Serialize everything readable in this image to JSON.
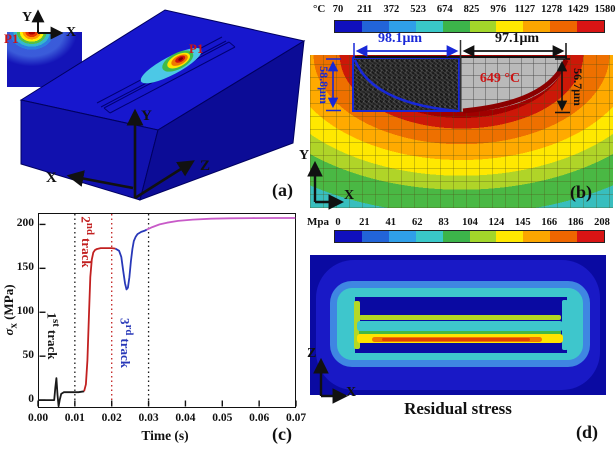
{
  "colors": {
    "colorbar": [
      "#1010be",
      "#2264d8",
      "#2f9fe8",
      "#39c8c8",
      "#3cb44a",
      "#a2d62a",
      "#ffe800",
      "#fba600",
      "#ee6600",
      "#d81414"
    ],
    "annotation_blue": "#1828d8",
    "annotation_red": "#cc1414",
    "block_blue": "#1414c0"
  },
  "panel_a": {
    "label": "(a)",
    "p1": "P1",
    "axis_x": "X",
    "axis_y": "Y",
    "axis_z": "Z",
    "inset": {
      "p1": "P1",
      "axis_x": "X",
      "axis_y": "Y"
    }
  },
  "panel_b": {
    "label": "(b)",
    "colorbar": {
      "unit": "°C",
      "ticks": [
        "70",
        "211",
        "372",
        "523",
        "674",
        "825",
        "976",
        "1127",
        "1278",
        "1429",
        "1580"
      ]
    },
    "width_left": "98.1μm",
    "width_right": "97.1μm",
    "depth_left": "58.8μm",
    "depth_right": "56.7μm",
    "peak_temp": "649 °C",
    "axis_x": "X",
    "axis_y": "Y"
  },
  "panel_c": {
    "label": "(c)",
    "xlabel": "Time (s)",
    "ylabel_sym": "σ",
    "ylabel_sub": "x",
    "ylabel_unit": "(MPa)",
    "x_ticks": [
      "0.00",
      "0.01",
      "0.02",
      "0.03",
      "0.04",
      "0.05",
      "0.06",
      "0.07"
    ],
    "y_ticks": [
      "0",
      "50",
      "100",
      "150",
      "200"
    ],
    "tracks": [
      {
        "num": "1",
        "sup": "st",
        "word": "track",
        "color": "#1a1a1a"
      },
      {
        "num": "2",
        "sup": "nd",
        "word": "track",
        "color": "#c22020"
      },
      {
        "num": "3",
        "sup": "rd",
        "word": "track",
        "color": "#2838b8"
      }
    ]
  },
  "panel_d": {
    "label": "(d)",
    "title": "Residual stress",
    "colorbar": {
      "unit": "Mpa",
      "ticks": [
        "0",
        "21",
        "41",
        "62",
        "83",
        "104",
        "124",
        "145",
        "166",
        "186",
        "208"
      ]
    },
    "axis_x": "X",
    "axis_z": "Z"
  },
  "chart_data": {
    "type": "line",
    "title": "",
    "xlabel": "Time (s)",
    "ylabel": "σx (MPa)",
    "xlim": [
      0,
      0.07
    ],
    "ylim": [
      -9,
      213
    ],
    "x_tick_values": [
      0,
      0.01,
      0.02,
      0.03,
      0.04,
      0.05,
      0.06,
      0.07
    ],
    "y_tick_values": [
      0,
      50,
      100,
      150,
      200
    ],
    "grid": false,
    "legend": false,
    "vlines": [
      {
        "x": 0.01,
        "color": "#1a1a1a"
      },
      {
        "x": 0.02,
        "color": "#c22020"
      },
      {
        "x": 0.03,
        "color": "#1a1a1a"
      }
    ],
    "series": [
      {
        "name": "stage-1",
        "color": "#1a1a1a",
        "points": [
          [
            0,
            0
          ],
          [
            0.0044,
            0
          ],
          [
            0.0047,
            14
          ],
          [
            0.005,
            25
          ],
          [
            0.0053,
            6
          ],
          [
            0.0056,
            -7
          ],
          [
            0.0059,
            0
          ],
          [
            0.0063,
            7
          ],
          [
            0.007,
            9
          ],
          [
            0.009,
            9
          ],
          [
            0.011,
            9
          ],
          [
            0.0125,
            10
          ]
        ]
      },
      {
        "name": "stage-2",
        "color": "#c22020",
        "points": [
          [
            0.0125,
            10
          ],
          [
            0.013,
            18
          ],
          [
            0.0134,
            45
          ],
          [
            0.0138,
            95
          ],
          [
            0.0142,
            140
          ],
          [
            0.0146,
            160
          ],
          [
            0.015,
            168
          ],
          [
            0.0155,
            171
          ],
          [
            0.016,
            172
          ],
          [
            0.017,
            173
          ],
          [
            0.0185,
            173
          ],
          [
            0.02,
            173
          ],
          [
            0.021,
            172.5
          ]
        ]
      },
      {
        "name": "stage-3",
        "color": "#2838b8",
        "points": [
          [
            0.021,
            172.5
          ],
          [
            0.022,
            170
          ],
          [
            0.0226,
            163
          ],
          [
            0.0231,
            148
          ],
          [
            0.0236,
            133
          ],
          [
            0.024,
            126
          ],
          [
            0.0244,
            128
          ],
          [
            0.0248,
            140
          ],
          [
            0.0252,
            158
          ],
          [
            0.0256,
            172
          ],
          [
            0.026,
            181
          ],
          [
            0.0265,
            186
          ],
          [
            0.027,
            189
          ],
          [
            0.028,
            191.5
          ],
          [
            0.029,
            193
          ],
          [
            0.0295,
            194
          ]
        ]
      },
      {
        "name": "stage-4",
        "color": "#c85ac8",
        "points": [
          [
            0.0295,
            194
          ],
          [
            0.031,
            197
          ],
          [
            0.033,
            200
          ],
          [
            0.035,
            202
          ],
          [
            0.038,
            204
          ],
          [
            0.042,
            205.5
          ],
          [
            0.047,
            206.5
          ],
          [
            0.052,
            207
          ],
          [
            0.058,
            207.2
          ],
          [
            0.064,
            207.3
          ],
          [
            0.0698,
            207.3
          ]
        ]
      }
    ]
  }
}
